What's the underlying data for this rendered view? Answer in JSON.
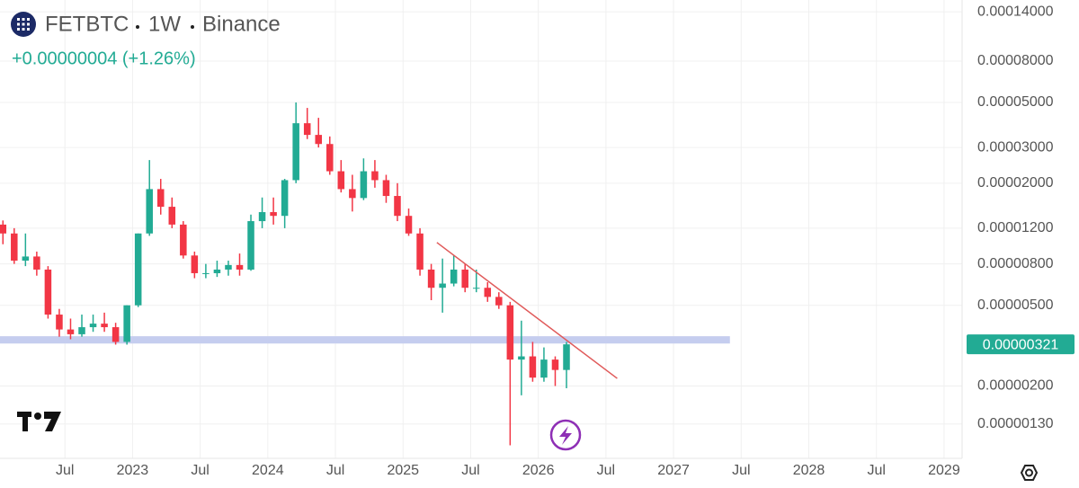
{
  "header": {
    "symbol": "FETBTC",
    "interval": "1W",
    "exchange": "Binance",
    "change": "+0.00000004 (+1.26%)"
  },
  "chart_data": {
    "type": "candlestick",
    "log_scale": true,
    "grid": true,
    "up_color": "#22ab94",
    "down_color": "#f23645",
    "x": [
      "2022-01",
      "2022-02",
      "2022-03",
      "2022-04",
      "2022-05",
      "2022-06",
      "2022-07",
      "2022-08",
      "2022-09",
      "2022-10",
      "2022-11",
      "2022-12",
      "2023-01",
      "2023-02",
      "2023-03",
      "2023-04",
      "2023-05",
      "2023-06",
      "2023-07",
      "2023-08",
      "2023-09",
      "2023-10",
      "2023-11",
      "2023-12",
      "2024-01",
      "2024-02",
      "2024-03",
      "2024-04",
      "2024-05",
      "2024-06",
      "2024-07",
      "2024-08",
      "2024-09",
      "2024-10",
      "2024-11",
      "2024-12",
      "2025-01",
      "2025-02",
      "2025-03",
      "2025-04",
      "2025-05",
      "2025-06",
      "2025-07",
      "2025-08",
      "2025-09",
      "2025-10",
      "2025-11",
      "2025-12",
      "2026-01",
      "2026-02",
      "2026-03"
    ],
    "open": [
      1.25e-05,
      1.13e-05,
      8.3e-06,
      8.7e-06,
      7.5e-06,
      4.5e-06,
      3.8e-06,
      3.6e-06,
      3.9e-06,
      4.06e-06,
      3.9e-06,
      3.3e-06,
      5e-06,
      1.13e-05,
      1.87e-05,
      1.53e-05,
      1.25e-05,
      8.8e-06,
      7.2e-06,
      7.2e-06,
      7.5e-06,
      7.9e-06,
      7.5e-06,
      1.3e-05,
      1.44e-05,
      1.38e-05,
      2.07e-05,
      3.95e-05,
      3.46e-05,
      3.12e-05,
      2.29e-05,
      1.87e-05,
      1.69e-05,
      2.29e-05,
      2.07e-05,
      1.73e-05,
      1.38e-05,
      1.13e-05,
      7.5e-06,
      6.1e-06,
      6.4e-06,
      7.5e-06,
      6.1e-06,
      6.1e-06,
      5.5e-06,
      5e-06,
      2.7e-06,
      2.8e-06,
      2.2e-06,
      2.7e-06,
      2.4e-06
    ],
    "high": [
      1.31e-05,
      1.2e-05,
      1.13e-05,
      9.2e-06,
      7.8e-06,
      4.8e-06,
      4.3e-06,
      4.5e-06,
      4.5e-06,
      4.6e-06,
      4.1e-06,
      5e-06,
      1.13e-05,
      2.6e-05,
      2.1e-05,
      1.7e-05,
      1.3e-05,
      9.2e-06,
      8e-06,
      8.3e-06,
      8.3e-06,
      9e-06,
      1.4e-05,
      1.7e-05,
      1.7e-05,
      2.1e-05,
      5e-05,
      4.7e-05,
      4.2e-05,
      3.4e-05,
      2.6e-05,
      2.2e-05,
      2.65e-05,
      2.6e-05,
      2.2e-05,
      2e-05,
      1.5e-05,
      1.2e-05,
      8e-06,
      8.5e-06,
      8.8e-06,
      8e-06,
      7.5e-06,
      6.5e-06,
      5.8e-06,
      5.2e-06,
      4.2e-06,
      3.3e-06,
      3.1e-06,
      2.8e-06,
      3.3e-06
    ],
    "low": [
      1e-05,
      8e-06,
      7.8e-06,
      7e-06,
      4.3e-06,
      3.5e-06,
      3.4e-06,
      3.5e-06,
      3.7e-06,
      3.7e-06,
      3.2e-06,
      3.2e-06,
      4.9e-06,
      1.1e-05,
      1.4e-05,
      1.2e-05,
      8.5e-06,
      6.8e-06,
      6.8e-06,
      6.9e-06,
      7e-06,
      7e-06,
      7.4e-06,
      1.2e-05,
      1.25e-05,
      1.2e-05,
      2e-05,
      3.3e-05,
      3e-05,
      2.2e-05,
      1.8e-05,
      1.45e-05,
      1.65e-05,
      1.9e-05,
      1.6e-05,
      1.3e-05,
      1.1e-05,
      7e-06,
      5.3e-06,
      4.6e-06,
      6.2e-06,
      5.8e-06,
      5.8e-06,
      5.2e-06,
      4.8e-06,
      1.02e-06,
      1.8e-06,
      2.1e-06,
      2.1e-06,
      2e-06,
      1.95e-06
    ],
    "close": [
      1.13e-05,
      8.3e-06,
      8.7e-06,
      7.5e-06,
      4.5e-06,
      3.8e-06,
      3.6e-06,
      3.9e-06,
      4.06e-06,
      3.9e-06,
      3.3e-06,
      5e-06,
      1.13e-05,
      1.87e-05,
      1.53e-05,
      1.25e-05,
      8.8e-06,
      7.2e-06,
      7.2e-06,
      7.5e-06,
      7.9e-06,
      7.5e-06,
      1.3e-05,
      1.44e-05,
      1.38e-05,
      2.07e-05,
      3.95e-05,
      3.46e-05,
      3.12e-05,
      2.29e-05,
      1.87e-05,
      1.69e-05,
      2.29e-05,
      2.07e-05,
      1.73e-05,
      1.38e-05,
      1.13e-05,
      7.5e-06,
      6.1e-06,
      6.4e-06,
      7.5e-06,
      6.1e-06,
      6.1e-06,
      5.5e-06,
      5e-06,
      2.7e-06,
      2.8e-06,
      2.2e-06,
      2.7e-06,
      2.4e-06,
      3.21e-06
    ],
    "last_price": {
      "value": 3.21e-06,
      "label": "0.00000321"
    },
    "support_band": {
      "low": 3.24e-06,
      "high": 3.52e-06,
      "end": "2027-06",
      "color": "#c5cdef"
    },
    "trendline": {
      "from": [
        "2025-04",
        1.02e-05
      ],
      "to": [
        "2026-08",
        2.18e-06
      ],
      "color": "#e05a5a"
    },
    "xlim": [
      "2022-01",
      "2029-03"
    ],
    "xticks": [
      {
        "value": "2022-07",
        "label": "Jul"
      },
      {
        "value": "2023-01",
        "label": "2023"
      },
      {
        "value": "2023-07",
        "label": "Jul"
      },
      {
        "value": "2024-01",
        "label": "2024"
      },
      {
        "value": "2024-07",
        "label": "Jul"
      },
      {
        "value": "2025-01",
        "label": "2025"
      },
      {
        "value": "2025-07",
        "label": "Jul"
      },
      {
        "value": "2026-01",
        "label": "2026"
      },
      {
        "value": "2026-07",
        "label": "Jul"
      },
      {
        "value": "2027-01",
        "label": "2027"
      },
      {
        "value": "2027-07",
        "label": "Jul"
      },
      {
        "value": "2028-01",
        "label": "2028"
      },
      {
        "value": "2028-07",
        "label": "Jul"
      },
      {
        "value": "2029-01",
        "label": "2029"
      }
    ],
    "ylim": [
      8.8e-07,
      0.00016
    ],
    "yticks": [
      {
        "value": 0.00014,
        "label": "0.00014000"
      },
      {
        "value": 8e-05,
        "label": "0.00008000"
      },
      {
        "value": 5e-05,
        "label": "0.00005000"
      },
      {
        "value": 3e-05,
        "label": "0.00003000"
      },
      {
        "value": 2e-05,
        "label": "0.00002000"
      },
      {
        "value": 1.2e-05,
        "label": "0.00001200"
      },
      {
        "value": 8e-06,
        "label": "0.00000800"
      },
      {
        "value": 5e-06,
        "label": "0.00000500"
      },
      {
        "value": 2e-06,
        "label": "0.00000200"
      },
      {
        "value": 1.3e-06,
        "label": "0.00000130"
      }
    ]
  }
}
